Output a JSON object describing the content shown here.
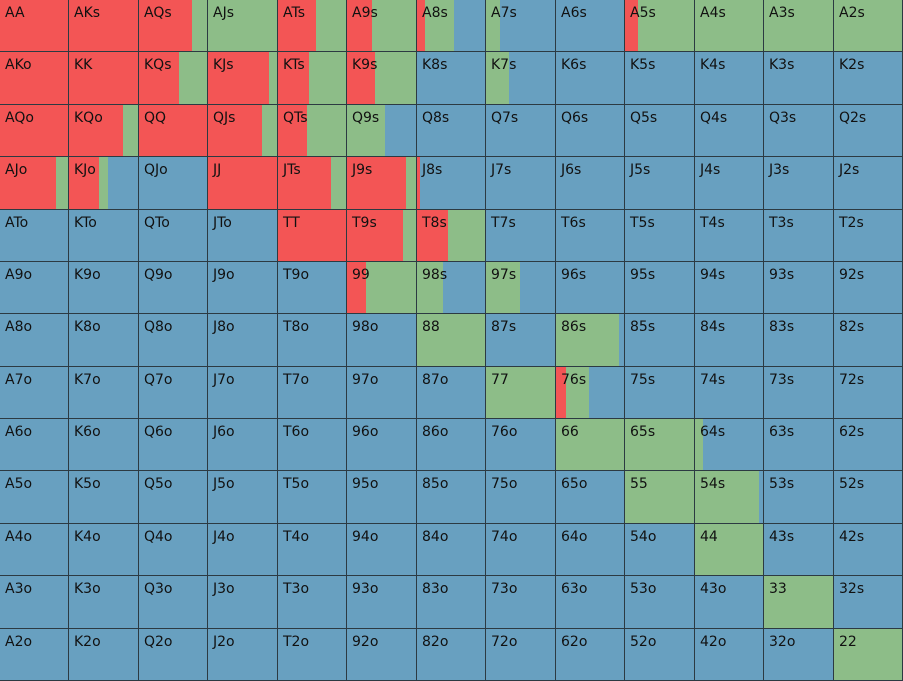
{
  "grid": {
    "colors": {
      "raise": "#f35555",
      "call": "#8dbd88",
      "fold": "#68a0c0"
    },
    "rows": [
      {
        "hands": [
          "AA",
          "AKs",
          "AQs",
          "AJs",
          "ATs",
          "A9s",
          "A8s",
          "A7s",
          "A6s",
          "A5s",
          "A4s",
          "A3s",
          "A2s"
        ],
        "raise": [
          100,
          100,
          78,
          0,
          56,
          36,
          12,
          0,
          0,
          19,
          0,
          0,
          0
        ],
        "call": [
          0,
          0,
          22,
          100,
          44,
          64,
          43,
          20,
          0,
          81,
          100,
          100,
          100
        ],
        "fold": [
          0,
          0,
          0,
          0,
          0,
          0,
          45,
          80,
          100,
          0,
          0,
          0,
          0
        ]
      },
      {
        "hands": [
          "AKo",
          "KK",
          "KQs",
          "KJs",
          "KTs",
          "K9s",
          "K8s",
          "K7s",
          "K6s",
          "K5s",
          "K4s",
          "K3s",
          "K2s"
        ],
        "raise": [
          100,
          100,
          59,
          89,
          46,
          40,
          0,
          0,
          0,
          0,
          0,
          0,
          0
        ],
        "call": [
          0,
          0,
          41,
          11,
          54,
          60,
          0,
          33,
          0,
          0,
          0,
          0,
          0
        ],
        "fold": [
          0,
          0,
          0,
          0,
          0,
          0,
          100,
          67,
          100,
          100,
          100,
          100,
          100
        ]
      },
      {
        "hands": [
          "AQo",
          "KQo",
          "QQ",
          "QJs",
          "QTs",
          "Q9s",
          "Q8s",
          "Q7s",
          "Q6s",
          "Q5s",
          "Q4s",
          "Q3s",
          "Q2s"
        ],
        "raise": [
          100,
          78,
          100,
          78,
          43,
          0,
          0,
          0,
          0,
          0,
          0,
          0,
          0
        ],
        "call": [
          0,
          22,
          0,
          22,
          57,
          55,
          0,
          0,
          0,
          0,
          0,
          0,
          0
        ],
        "fold": [
          0,
          0,
          0,
          0,
          0,
          45,
          100,
          100,
          100,
          100,
          100,
          100,
          100
        ]
      },
      {
        "hands": [
          "AJo",
          "KJo",
          "QJo",
          "JJ",
          "JTs",
          "J9s",
          "J8s",
          "J7s",
          "J6s",
          "J5s",
          "J4s",
          "J3s",
          "J2s"
        ],
        "raise": [
          83,
          43,
          0,
          100,
          78,
          86,
          5,
          0,
          0,
          0,
          0,
          0,
          0
        ],
        "call": [
          17,
          14,
          0,
          0,
          22,
          14,
          0,
          0,
          0,
          0,
          0,
          0,
          0
        ],
        "fold": [
          0,
          43,
          100,
          0,
          0,
          0,
          95,
          100,
          100,
          100,
          100,
          100,
          100
        ]
      },
      {
        "hands": [
          "ATo",
          "KTo",
          "QTo",
          "JTo",
          "TT",
          "T9s",
          "T8s",
          "T7s",
          "T6s",
          "T5s",
          "T4s",
          "T3s",
          "T2s"
        ],
        "raise": [
          0,
          0,
          0,
          0,
          100,
          81,
          45,
          0,
          0,
          0,
          0,
          0,
          0
        ],
        "call": [
          0,
          0,
          0,
          0,
          0,
          19,
          55,
          0,
          0,
          0,
          0,
          0,
          0
        ],
        "fold": [
          100,
          100,
          100,
          100,
          0,
          0,
          0,
          100,
          100,
          100,
          100,
          100,
          100
        ]
      },
      {
        "hands": [
          "A9o",
          "K9o",
          "Q9o",
          "J9o",
          "T9o",
          "99",
          "98s",
          "97s",
          "96s",
          "95s",
          "94s",
          "93s",
          "92s"
        ],
        "raise": [
          0,
          0,
          0,
          0,
          0,
          27,
          0,
          0,
          0,
          0,
          0,
          0,
          0
        ],
        "call": [
          0,
          0,
          0,
          0,
          0,
          73,
          38,
          49,
          0,
          0,
          0,
          0,
          0
        ],
        "fold": [
          100,
          100,
          100,
          100,
          100,
          0,
          62,
          51,
          100,
          100,
          100,
          100,
          100
        ]
      },
      {
        "hands": [
          "A8o",
          "K8o",
          "Q8o",
          "J8o",
          "T8o",
          "98o",
          "88",
          "87s",
          "86s",
          "85s",
          "84s",
          "83s",
          "82s"
        ],
        "raise": [
          0,
          0,
          0,
          0,
          0,
          0,
          0,
          0,
          0,
          0,
          0,
          0,
          0
        ],
        "call": [
          0,
          0,
          0,
          0,
          0,
          0,
          100,
          0,
          92,
          0,
          0,
          0,
          0
        ],
        "fold": [
          100,
          100,
          100,
          100,
          100,
          100,
          0,
          100,
          8,
          100,
          100,
          100,
          100
        ]
      },
      {
        "hands": [
          "A7o",
          "K7o",
          "Q7o",
          "J7o",
          "T7o",
          "97o",
          "87o",
          "77",
          "76s",
          "75s",
          "74s",
          "73s",
          "72s"
        ],
        "raise": [
          0,
          0,
          0,
          0,
          0,
          0,
          0,
          0,
          14,
          0,
          0,
          0,
          0
        ],
        "call": [
          0,
          0,
          0,
          0,
          0,
          0,
          0,
          100,
          35,
          0,
          0,
          0,
          0
        ],
        "fold": [
          100,
          100,
          100,
          100,
          100,
          100,
          100,
          0,
          51,
          100,
          100,
          100,
          100
        ]
      },
      {
        "hands": [
          "A6o",
          "K6o",
          "Q6o",
          "J6o",
          "T6o",
          "96o",
          "86o",
          "76o",
          "66",
          "65s",
          "64s",
          "63s",
          "62s"
        ],
        "raise": [
          0,
          0,
          0,
          0,
          0,
          0,
          0,
          0,
          0,
          0,
          0,
          0,
          0
        ],
        "call": [
          0,
          0,
          0,
          0,
          0,
          0,
          0,
          0,
          100,
          100,
          12,
          0,
          0
        ],
        "fold": [
          100,
          100,
          100,
          100,
          100,
          100,
          100,
          100,
          0,
          0,
          88,
          100,
          100
        ]
      },
      {
        "hands": [
          "A5o",
          "K5o",
          "Q5o",
          "J5o",
          "T5o",
          "95o",
          "85o",
          "75o",
          "65o",
          "55",
          "54s",
          "53s",
          "52s"
        ],
        "raise": [
          0,
          0,
          0,
          0,
          0,
          0,
          0,
          0,
          0,
          0,
          0,
          0,
          0
        ],
        "call": [
          0,
          0,
          0,
          0,
          0,
          0,
          0,
          0,
          0,
          100,
          94,
          0,
          0
        ],
        "fold": [
          100,
          100,
          100,
          100,
          100,
          100,
          100,
          100,
          100,
          0,
          6,
          100,
          100
        ]
      },
      {
        "hands": [
          "A4o",
          "K4o",
          "Q4o",
          "J4o",
          "T4o",
          "94o",
          "84o",
          "74o",
          "64o",
          "54o",
          "44",
          "43s",
          "42s"
        ],
        "raise": [
          0,
          0,
          0,
          0,
          0,
          0,
          0,
          0,
          0,
          0,
          0,
          0,
          0
        ],
        "call": [
          0,
          0,
          0,
          0,
          0,
          0,
          0,
          0,
          0,
          0,
          100,
          0,
          0
        ],
        "fold": [
          100,
          100,
          100,
          100,
          100,
          100,
          100,
          100,
          100,
          100,
          0,
          100,
          100
        ]
      },
      {
        "hands": [
          "A3o",
          "K3o",
          "Q3o",
          "J3o",
          "T3o",
          "93o",
          "83o",
          "73o",
          "63o",
          "53o",
          "43o",
          "33",
          "32s"
        ],
        "raise": [
          0,
          0,
          0,
          0,
          0,
          0,
          0,
          0,
          0,
          0,
          0,
          0,
          0
        ],
        "call": [
          0,
          0,
          0,
          0,
          0,
          0,
          0,
          0,
          0,
          0,
          0,
          100,
          0
        ],
        "fold": [
          100,
          100,
          100,
          100,
          100,
          100,
          100,
          100,
          100,
          100,
          100,
          0,
          100
        ]
      },
      {
        "hands": [
          "A2o",
          "K2o",
          "Q2o",
          "J2o",
          "T2o",
          "92o",
          "82o",
          "72o",
          "62o",
          "52o",
          "42o",
          "32o",
          "22"
        ],
        "raise": [
          0,
          0,
          0,
          0,
          0,
          0,
          0,
          0,
          0,
          0,
          0,
          0,
          0
        ],
        "call": [
          0,
          0,
          0,
          0,
          0,
          0,
          0,
          0,
          0,
          0,
          0,
          0,
          100
        ],
        "fold": [
          100,
          100,
          100,
          100,
          100,
          100,
          100,
          100,
          100,
          100,
          100,
          100,
          0
        ]
      }
    ]
  }
}
